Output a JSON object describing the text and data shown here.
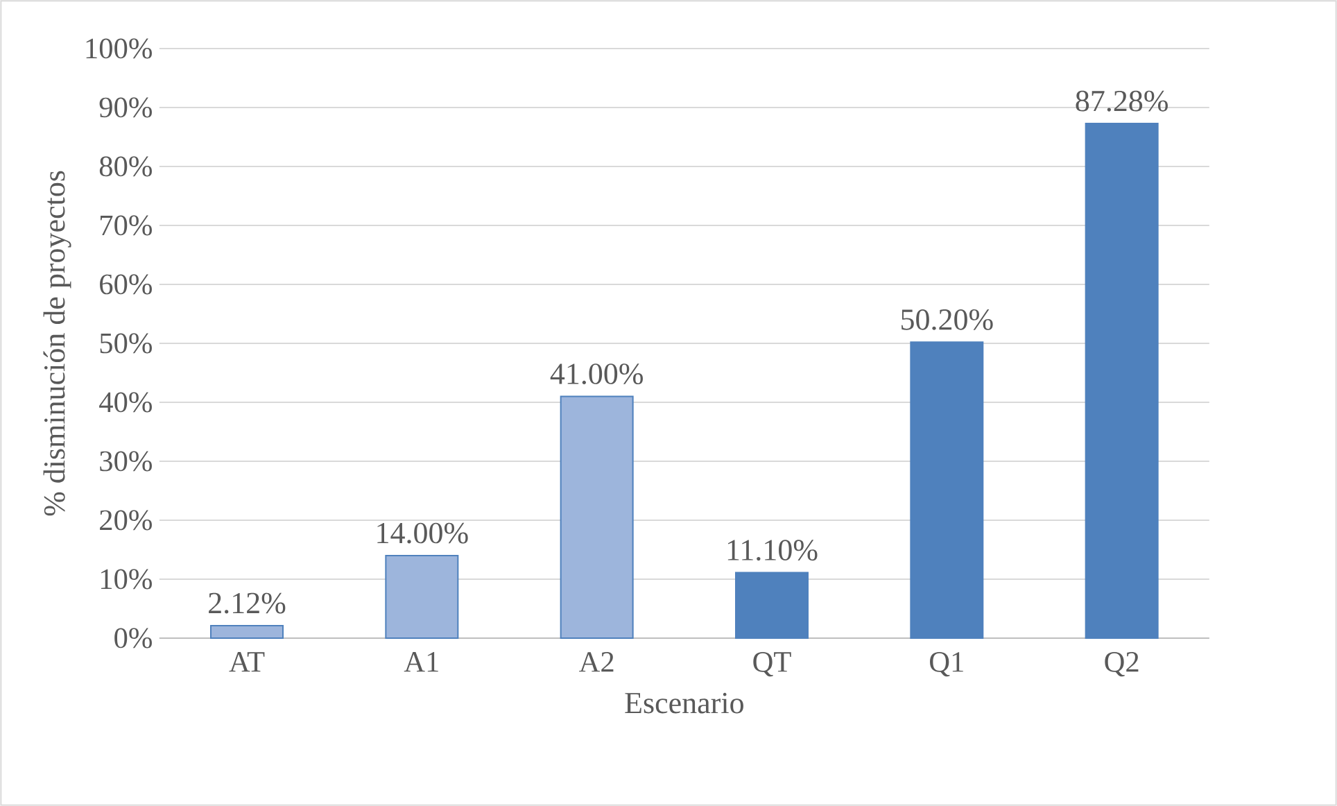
{
  "chart_data": {
    "type": "bar",
    "xlabel": "Escenario",
    "ylabel": "% disminución de proyectos",
    "categories": [
      "AT",
      "A1",
      "A2",
      "QT",
      "Q1",
      "Q2"
    ],
    "values": [
      2.12,
      14.0,
      41.0,
      11.1,
      50.2,
      87.28
    ],
    "value_labels": [
      "2.12%",
      "14.00%",
      "41.00%",
      "11.10%",
      "50.20%",
      "87.28%"
    ],
    "colors": [
      "#9db5dc",
      "#9db5dc",
      "#9db5dc",
      "#4f81bd",
      "#4f81bd",
      "#4f81bd"
    ],
    "ylim": [
      0,
      100
    ],
    "yticks": [
      {
        "value": 0,
        "label": "0%"
      },
      {
        "value": 10,
        "label": "10%"
      },
      {
        "value": 20,
        "label": "20%"
      },
      {
        "value": 30,
        "label": "30%"
      },
      {
        "value": 40,
        "label": "40%"
      },
      {
        "value": 50,
        "label": "50%"
      },
      {
        "value": 60,
        "label": "60%"
      },
      {
        "value": 70,
        "label": "70%"
      },
      {
        "value": 80,
        "label": "80%"
      },
      {
        "value": 90,
        "label": "90%"
      },
      {
        "value": 100,
        "label": "100%"
      }
    ],
    "grid": "y"
  }
}
